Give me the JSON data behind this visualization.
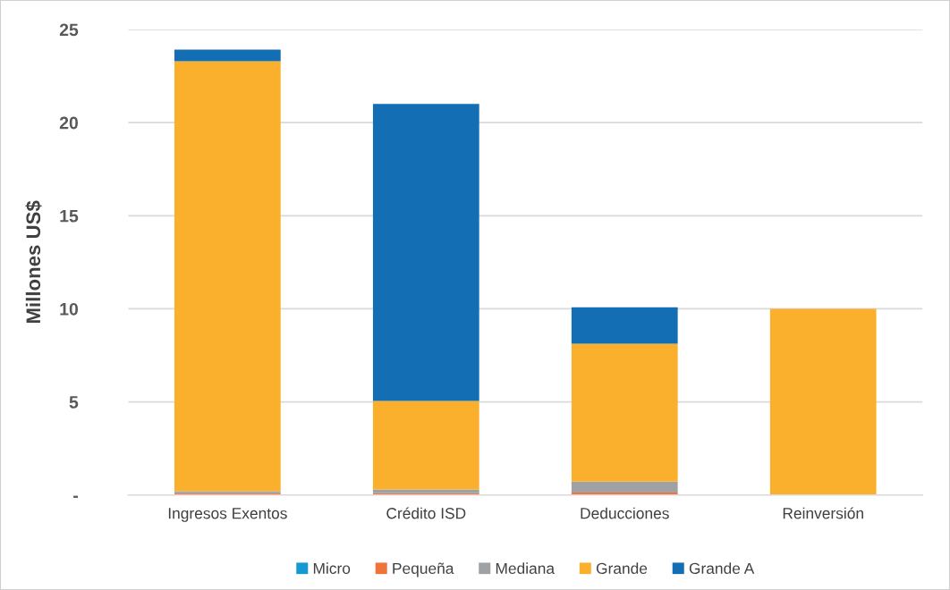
{
  "chart_data": {
    "type": "bar",
    "stacked": true,
    "ylabel": "Millones US$",
    "categories": [
      "Ingresos Exentos",
      "Crédito ISD",
      "Deducciones",
      "Reinversión"
    ],
    "series": [
      {
        "name": "Micro",
        "color": "#1599d0",
        "values": [
          0,
          0,
          0,
          0
        ]
      },
      {
        "name": "Pequeña",
        "color": "#f0733a",
        "values": [
          0.1,
          0.1,
          0.13,
          0
        ]
      },
      {
        "name": "Mediana",
        "color": "#9fa2a5",
        "values": [
          0.1,
          0.2,
          0.59,
          0
        ]
      },
      {
        "name": "Grande",
        "color": "#fbb02d",
        "values": [
          23.1,
          4.75,
          7.4,
          10.0
        ]
      },
      {
        "name": "Grande A",
        "color": "#146eb4",
        "values": [
          0.62,
          15.95,
          1.96,
          0
        ]
      }
    ],
    "ylim": [
      0,
      25
    ],
    "yticks": [
      {
        "value": 0,
        "label": "-"
      },
      5,
      10,
      15,
      20,
      25
    ],
    "grid": "y",
    "legend": "bottom"
  }
}
